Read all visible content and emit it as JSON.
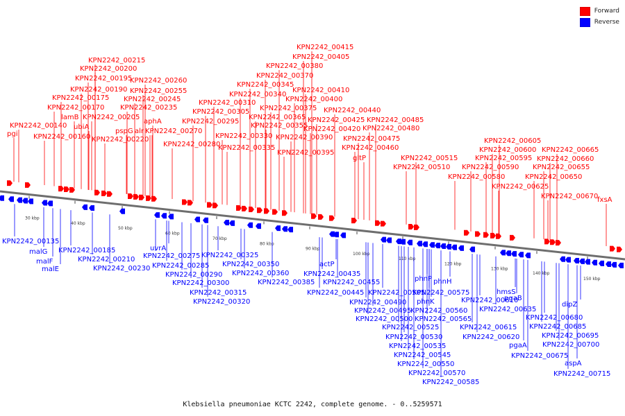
{
  "colors": {
    "forward": "#ff0000",
    "reverse": "#0000ff",
    "backbone": "#6e6e6e",
    "text": "#111111"
  },
  "legend": [
    {
      "label": "Forward",
      "color": "#ff0000"
    },
    {
      "label": "Reverse",
      "color": "#0000ff"
    }
  ],
  "caption": "Klebsiella pneumoniae KCTC 2242, complete genome. - 0..5259571",
  "scale_labels": [
    "30 kbp",
    "40 kbp",
    "50 kbp",
    "60 kbp",
    "70 kbp",
    "80 kbp",
    "90 kbp",
    "100 kbp",
    "110 kbp",
    "120 kbp",
    "130 kbp",
    "140 kbp",
    "150 kbp"
  ],
  "forward_labels": [
    "pgi",
    "KPN2242_00140",
    "KPN2242_00160",
    "lamB",
    "ubiA",
    "KPN2242_00170",
    "KPN2242_00175",
    "KPN2242_00190",
    "KPN2242_00195",
    "KPN2242_00200",
    "KPN2242_00215",
    "KPN2242_00205",
    "pspG",
    "KPN2242_00220",
    "alr",
    "KPN2242_00235",
    "aphA",
    "KPN2242_00245",
    "KPN2242_00255",
    "KPN2242_00260",
    "KPN2242_00270",
    "KPN2242_00280",
    "KPN2242_00295",
    "KPN2242_00305",
    "KPN2242_00310",
    "KPN2242_00330",
    "KPN2242_00335",
    "KPN2242_00340",
    "KPN2242_00345",
    "KPN2242_00355",
    "KPN2242_00365",
    "KPN2242_00370",
    "KPN2242_00375",
    "KPN2242_00380",
    "KPN2242_00390",
    "KPN2242_00395",
    "KPN2242_00400",
    "KPN2242_00405",
    "KPN2242_00410",
    "KPN2242_00415",
    "KPN2242_00420",
    "KPN2242_00425",
    "KPN2242_00440",
    "KPN2242_00460",
    "KPN2242_00475",
    "KPN2242_00480",
    "KPN2242_00485",
    "gltP",
    "KPN2242_00510",
    "KPN2242_00515",
    "KPN2242_00580",
    "KPN2242_00590",
    "KPN2242_00595",
    "KPN2242_00600",
    "KPN2242_00605",
    "KPN2242_00625",
    "KPN2242_00650",
    "KPN2242_00655",
    "KPN2242_00660",
    "KPN2242_00665",
    "KPN2242_00670",
    "fxsA"
  ],
  "reverse_labels": [
    "KPN2242_00135",
    "malG",
    "malF",
    "malE",
    "KPN2242_00185",
    "KPN2242_00210",
    "KPN2242_00230",
    "uvrA",
    "KPN2242_00275",
    "KPN2242_00285",
    "KPN2242_00290",
    "KPN2242_00300",
    "KPN2242_00315",
    "KPN2242_00320",
    "KPN2242_00325",
    "KPN2242_00350",
    "KPN2242_00360",
    "KPN2242_00385",
    "actP",
    "KPN2242_00435",
    "KPN2242_00445",
    "KPN2242_00455",
    "KPN2242_00490",
    "KPN2242_00495",
    "KPN2242_00500",
    "KPN2242_00505",
    "KPN2242_00525",
    "KPN2242_00530",
    "KPN2242_00535",
    "KPN2242_00545",
    "KPN2242_00550",
    "KPN2242_00560",
    "KPN2242_00565",
    "KPN2242_00570",
    "KPN2242_00575",
    "KPN2242_00585",
    "phnP",
    "phnK",
    "phnH",
    "KPN2242_00610",
    "KPN2242_00615",
    "KPN2242_00620",
    "KPN2242_00635",
    "hmsS",
    "pgaB",
    "pgaA",
    "KPN2242_00675",
    "KPN2242_00680",
    "KPN2242_00685",
    "KPN2242_00695",
    "KPN2242_00700",
    "dipZ",
    "aspA",
    "KPN2242_00715"
  ]
}
